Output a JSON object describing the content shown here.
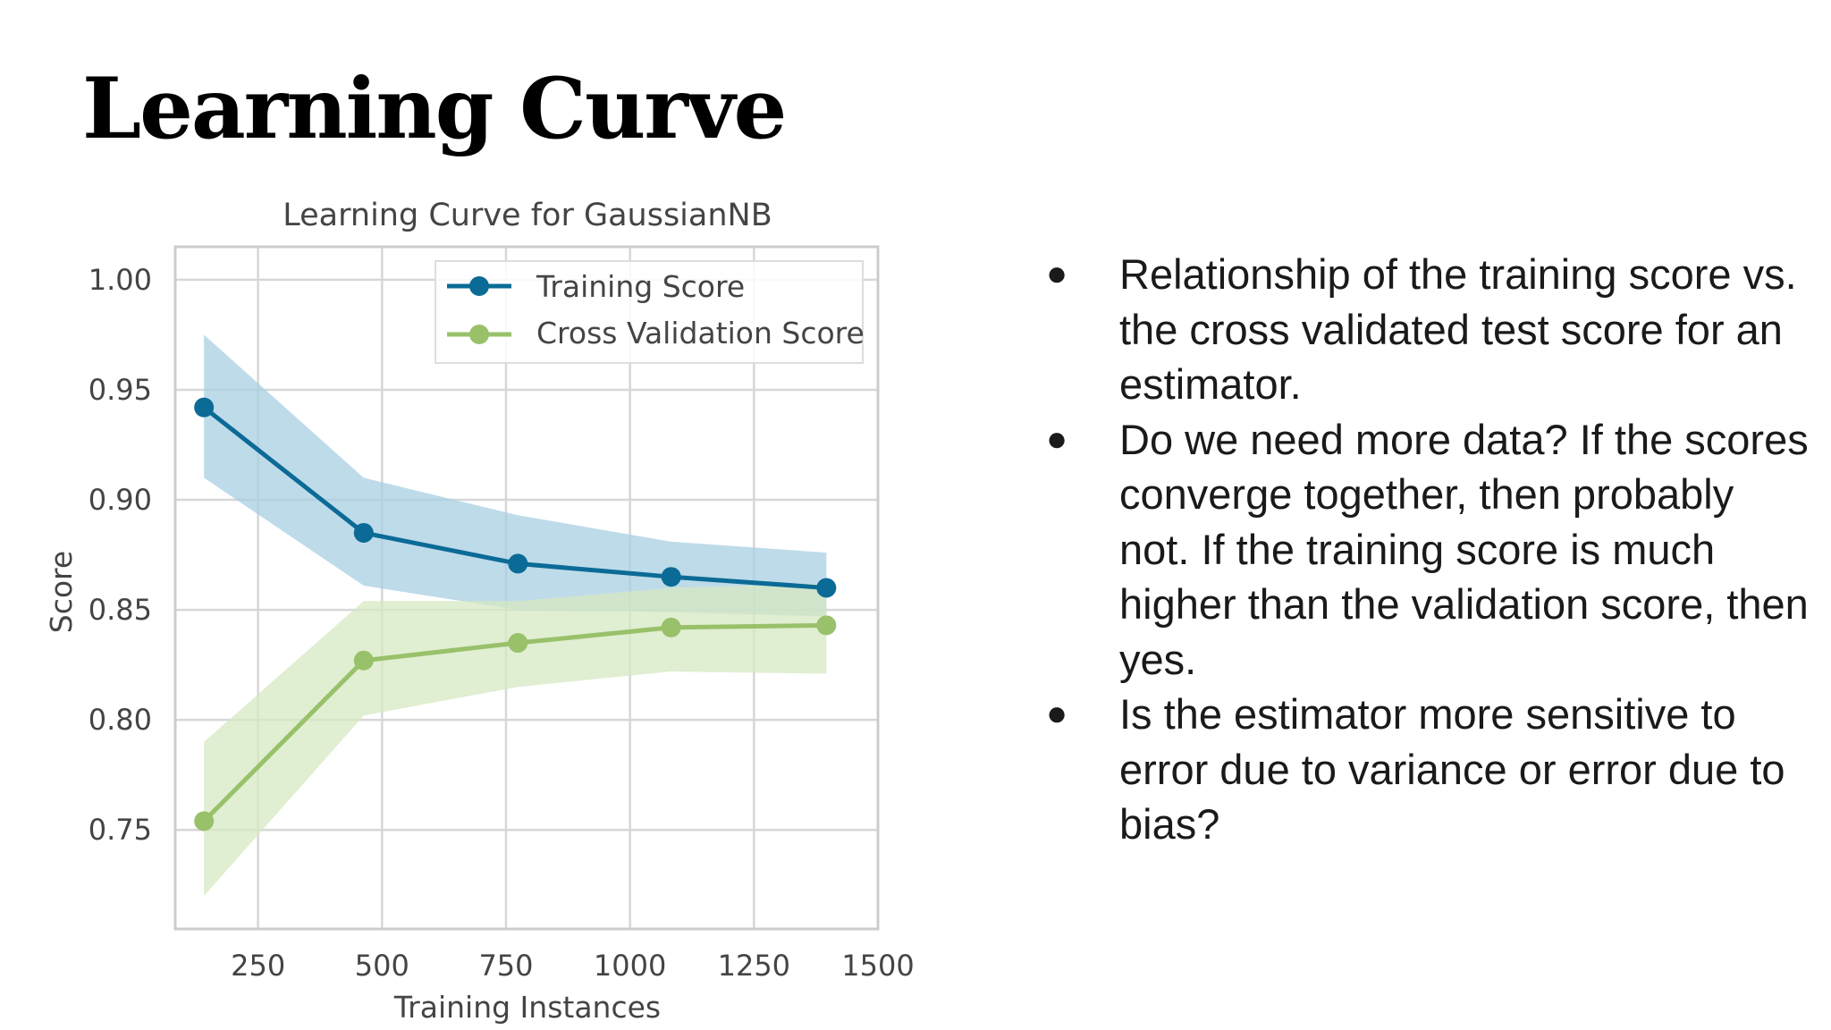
{
  "slide": {
    "title": "Learning Curve",
    "bullets": [
      "Relationship of the training score vs. the cross validated test score for an estimator.",
      "Do we need more data?  If the scores converge together, then probably not. If the training score is much higher than the validation score, then yes.",
      "Is the estimator more sensitive to error due to variance or error due to bias?"
    ],
    "bullet_glyph": "●"
  },
  "chart_data": {
    "type": "line",
    "title": "Learning Curve for GaussianNB",
    "xlabel": "Training Instances",
    "ylabel": "Score",
    "xlim": [
      83,
      1500
    ],
    "ylim": [
      0.705,
      1.015
    ],
    "xticks": [
      250,
      500,
      750,
      1000,
      1250,
      1500
    ],
    "yticks": [
      0.75,
      0.8,
      0.85,
      0.9,
      0.95,
      1.0
    ],
    "xtick_labels": [
      "250",
      "500",
      "750",
      "1000",
      "1250",
      "1500"
    ],
    "ytick_labels": [
      "0.75",
      "0.80",
      "0.85",
      "0.90",
      "0.95",
      "1.00"
    ],
    "grid": true,
    "legend_position": "top-right",
    "x": [
      141,
      463,
      774,
      1083,
      1396
    ],
    "series": [
      {
        "name": "Training Score",
        "color": "#0b6b96",
        "band_color": "#a8cfe3",
        "values": [
          0.942,
          0.885,
          0.871,
          0.865,
          0.86
        ],
        "upper": [
          0.975,
          0.91,
          0.893,
          0.881,
          0.876
        ],
        "lower": [
          0.91,
          0.861,
          0.85,
          0.849,
          0.847
        ]
      },
      {
        "name": "Cross Validation Score",
        "color": "#98c16a",
        "band_color": "#d6e8c2",
        "values": [
          0.754,
          0.827,
          0.835,
          0.842,
          0.843
        ],
        "upper": [
          0.79,
          0.854,
          0.854,
          0.86,
          0.862
        ],
        "lower": [
          0.72,
          0.802,
          0.815,
          0.822,
          0.821
        ]
      }
    ]
  }
}
